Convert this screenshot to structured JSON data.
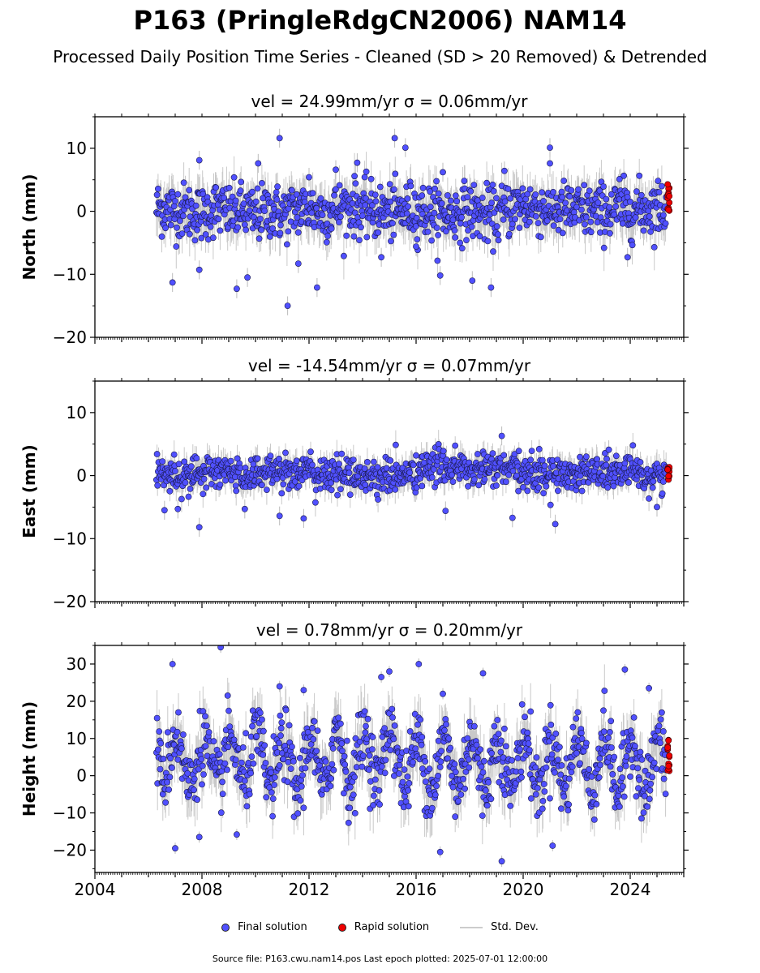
{
  "title": "P163 (PringleRdgCN2006) NAM14",
  "subtitle": "Processed Daily Position Time Series - Cleaned (SD > 20 Removed) & Detrended",
  "legend": {
    "final": "Final solution",
    "rapid": "Rapid solution",
    "std": "Std. Dev."
  },
  "footer": "Source file: P163.cwu.nam14.pos  Last epoch plotted: 2025-07-01 12:00:00",
  "colors": {
    "final": "#5050ff",
    "rapid": "#ee0000",
    "std": "#bbbbbb"
  },
  "chart_data": [
    {
      "type": "scatter",
      "title": "vel = 24.99mm/yr   σ = 0.06mm/yr",
      "ylabel": "North (mm)",
      "xlim": [
        2004.0,
        2026.0
      ],
      "ylim": [
        -20,
        15
      ],
      "yticks": [
        -20,
        -10,
        0,
        10
      ],
      "xticks": [
        2004,
        2008,
        2012,
        2016,
        2020,
        2024
      ],
      "data_start": 2006.3,
      "rapid_start": 2025.35,
      "series": [
        {
          "name": "Final solution",
          "x": [
            2006.5,
            2007.0,
            2007.5,
            2008.0,
            2008.5,
            2009.0,
            2009.5,
            2010.0,
            2010.5,
            2011.0,
            2011.5,
            2012.0,
            2012.5,
            2013.0,
            2013.5,
            2014.0,
            2014.5,
            2015.0,
            2015.5,
            2016.0,
            2016.5,
            2017.0,
            2017.5,
            2018.0,
            2018.5,
            2019.0,
            2019.5,
            2020.0,
            2020.5,
            2021.0,
            2021.5,
            2022.0,
            2022.5,
            2023.0,
            2023.5,
            2024.0,
            2024.5,
            2025.0
          ],
          "y": [
            0.5,
            0.2,
            0.0,
            -0.5,
            0.5,
            -0.2,
            0.0,
            -0.8,
            0.2,
            -0.5,
            0.3,
            0.5,
            -0.3,
            0.2,
            0.8,
            0.4,
            0.0,
            -0.3,
            0.0,
            0.3,
            -0.2,
            -0.5,
            -0.3,
            0.2,
            -0.6,
            -0.8,
            0.5,
            1.0,
            0.6,
            0.4,
            0.2,
            0.0,
            0.0,
            0.0,
            0.3,
            0.2,
            0.4,
            0.6
          ],
          "scatter": 2.2
        },
        {
          "name": "Rapid solution",
          "x": [
            2025.4
          ],
          "y": [
            2.5
          ]
        }
      ],
      "outliers": [
        [
          2006.9,
          -11.3
        ],
        [
          2007.9,
          8.1
        ],
        [
          2007.9,
          -9.3
        ],
        [
          2009.3,
          -12.3
        ],
        [
          2009.7,
          -10.5
        ],
        [
          2010.1,
          7.6
        ],
        [
          2010.9,
          11.6
        ],
        [
          2011.2,
          -15.0
        ],
        [
          2011.6,
          -8.3
        ],
        [
          2012.0,
          5.4
        ],
        [
          2012.3,
          -12.1
        ],
        [
          2013.0,
          6.6
        ],
        [
          2013.8,
          7.7
        ],
        [
          2014.7,
          -7.3
        ],
        [
          2015.2,
          11.6
        ],
        [
          2015.6,
          10.1
        ],
        [
          2016.0,
          -5.6
        ],
        [
          2017.0,
          6.2
        ],
        [
          2016.9,
          -10.2
        ],
        [
          2018.1,
          -11.0
        ],
        [
          2018.8,
          -12.1
        ],
        [
          2019.3,
          6.4
        ],
        [
          2021.0,
          10.1
        ],
        [
          2023.6,
          5.1
        ],
        [
          2023.9,
          -7.3
        ]
      ]
    },
    {
      "type": "scatter",
      "title": "vel = -14.54mm/yr   σ = 0.07mm/yr",
      "ylabel": "East (mm)",
      "xlim": [
        2004.0,
        2026.0
      ],
      "ylim": [
        -20,
        15
      ],
      "yticks": [
        -20,
        -10,
        0,
        10
      ],
      "xticks": [
        2004,
        2008,
        2012,
        2016,
        2020,
        2024
      ],
      "data_start": 2006.3,
      "rapid_start": 2025.35,
      "series": [
        {
          "name": "Final solution",
          "x": [
            2006.5,
            2007.0,
            2007.5,
            2008.0,
            2008.5,
            2009.0,
            2009.5,
            2010.0,
            2010.5,
            2011.0,
            2011.5,
            2012.0,
            2012.5,
            2013.0,
            2013.5,
            2014.0,
            2014.5,
            2015.0,
            2015.5,
            2016.0,
            2016.5,
            2017.0,
            2017.5,
            2018.0,
            2018.5,
            2019.0,
            2019.5,
            2020.0,
            2020.5,
            2021.0,
            2021.5,
            2022.0,
            2022.5,
            2023.0,
            2023.5,
            2024.0,
            2024.5,
            2025.0
          ],
          "y": [
            0.5,
            0.0,
            0.5,
            -0.2,
            0.8,
            0.5,
            0.0,
            0.3,
            1.0,
            0.6,
            0.8,
            0.5,
            0.0,
            0.2,
            0.4,
            0.0,
            -0.3,
            -0.1,
            0.0,
            0.3,
            1.3,
            1.6,
            1.4,
            0.5,
            1.0,
            1.2,
            0.8,
            0.3,
            0.5,
            0.0,
            0.3,
            0.5,
            0.7,
            0.3,
            0.5,
            0.3,
            0.0,
            0.0
          ],
          "scatter": 1.4
        },
        {
          "name": "Rapid solution",
          "x": [
            2025.4
          ],
          "y": [
            0.0
          ]
        }
      ],
      "outliers": [
        [
          2006.6,
          -5.5
        ],
        [
          2007.1,
          -5.3
        ],
        [
          2007.9,
          -8.2
        ],
        [
          2009.6,
          -5.3
        ],
        [
          2010.9,
          -6.4
        ],
        [
          2011.8,
          -6.8
        ],
        [
          2017.1,
          -5.6
        ],
        [
          2019.2,
          6.3
        ],
        [
          2019.6,
          -6.7
        ],
        [
          2020.6,
          4.2
        ],
        [
          2021.2,
          -7.7
        ],
        [
          2023.2,
          4.1
        ],
        [
          2025.0,
          -5.0
        ]
      ]
    },
    {
      "type": "scatter",
      "title": "vel = 0.78mm/yr   σ = 0.20mm/yr",
      "ylabel": "Height (mm)",
      "xlim": [
        2004.0,
        2026.0
      ],
      "ylim": [
        -26,
        35
      ],
      "yticks": [
        -20,
        -10,
        0,
        10,
        20,
        30
      ],
      "xticks": [
        2004,
        2008,
        2012,
        2016,
        2020,
        2024
      ],
      "data_start": 2006.3,
      "rapid_start": 2025.35,
      "seasonal_amplitude": 7.5,
      "series": [
        {
          "name": "Final solution",
          "x": [
            2006.5,
            2007.0,
            2007.5,
            2008.0,
            2008.5,
            2009.0,
            2009.5,
            2010.0,
            2010.5,
            2011.0,
            2011.5,
            2012.0,
            2012.5,
            2013.0,
            2013.5,
            2014.0,
            2014.5,
            2015.0,
            2015.5,
            2016.0,
            2016.5,
            2017.0,
            2017.5,
            2018.0,
            2018.5,
            2019.0,
            2019.5,
            2020.0,
            2020.5,
            2021.0,
            2021.5,
            2022.0,
            2022.5,
            2023.0,
            2023.5,
            2024.0,
            2024.5,
            2025.0
          ],
          "y": [
            8.0,
            3.0,
            5.0,
            2.0,
            6.0,
            2.0,
            6.0,
            3.0,
            5.0,
            2.0,
            3.0,
            3.0,
            4.0,
            5.0,
            5.0,
            4.0,
            6.0,
            6.0,
            5.0,
            2.0,
            4.0,
            2.0,
            4.0,
            3.0,
            4.0,
            2.0,
            5.0,
            3.0,
            4.0,
            2.0,
            4.0,
            3.0,
            4.0,
            3.0,
            3.0,
            3.0,
            3.0,
            2.0
          ],
          "scatter": 4.5
        },
        {
          "name": "Rapid solution",
          "x": [
            2025.4
          ],
          "y": [
            5.0
          ]
        }
      ],
      "outliers": [
        [
          2006.9,
          30.0
        ],
        [
          2007.0,
          -19.5
        ],
        [
          2007.9,
          -16.5
        ],
        [
          2008.7,
          34.5
        ],
        [
          2009.3,
          -15.8
        ],
        [
          2010.9,
          24.0
        ],
        [
          2011.8,
          23.0
        ],
        [
          2014.7,
          26.5
        ],
        [
          2015.0,
          28.0
        ],
        [
          2016.1,
          30.0
        ],
        [
          2016.9,
          -20.5
        ],
        [
          2017.0,
          22.0
        ],
        [
          2018.5,
          27.5
        ],
        [
          2019.2,
          -23.0
        ],
        [
          2021.1,
          -18.8
        ],
        [
          2023.8,
          28.5
        ],
        [
          2024.7,
          23.5
        ]
      ]
    }
  ]
}
